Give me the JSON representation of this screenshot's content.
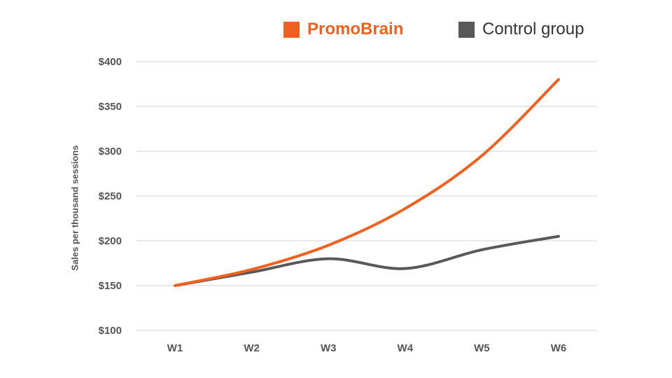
{
  "chart_data": {
    "type": "line",
    "categories": [
      "W1",
      "W2",
      "W3",
      "W4",
      "W5",
      "W6"
    ],
    "series": [
      {
        "name": "PromoBrain",
        "values": [
          150,
          168,
          195,
          236,
          295,
          380
        ],
        "color": "#F0601F"
      },
      {
        "name": "Control group",
        "values": [
          150,
          165,
          180,
          169,
          190,
          205
        ],
        "color": "#595959"
      }
    ],
    "ylabel": "Sales per thousand sessions",
    "ylim": [
      100,
      400
    ],
    "yticks": [
      100,
      150,
      200,
      250,
      300,
      350,
      400
    ],
    "ytick_labels": [
      "$100",
      "$150",
      "$200",
      "$250",
      "$300",
      "$350",
      "$400"
    ],
    "grid": true,
    "legend_position": "top-right",
    "smooth": true,
    "gridline_color": "#d9d9d9"
  }
}
